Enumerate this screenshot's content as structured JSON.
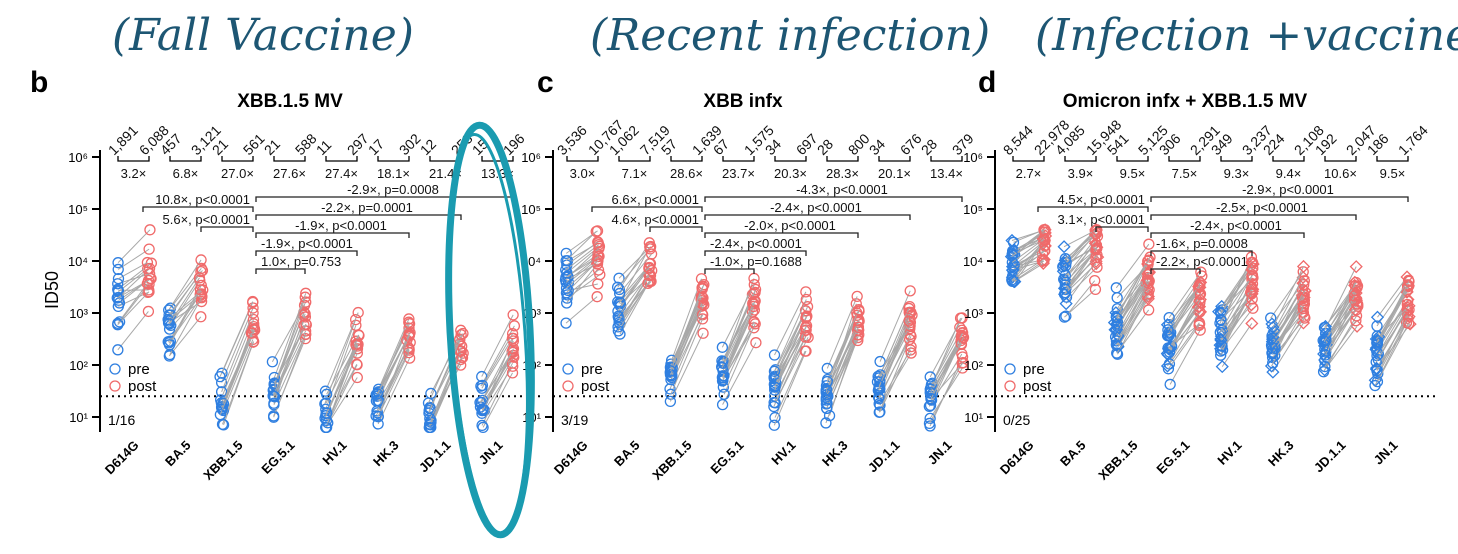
{
  "annotations": {
    "handwritten": [
      "(Fall Vaccine)",
      "(Recent infection)",
      "(Infection +vaccine)"
    ],
    "highlight_circle_target": "JN.1",
    "highlight_color": "#1a9bb0",
    "handwriting_color": "#1d5673"
  },
  "colors": {
    "pre": "#2f7fe0",
    "post": "#f06a6a",
    "link": "#a8a8a8"
  },
  "chart_data": [
    {
      "type": "scatter",
      "panel": "b",
      "title": "XBB.1.5 MV",
      "ylabel": "ID50",
      "yscale": "log",
      "ylim": [
        5,
        1000000
      ],
      "yticks": [
        "10¹",
        "10²",
        "10³",
        "10⁴",
        "10⁵",
        "10⁶"
      ],
      "limit_of_detection": 25,
      "categories": [
        "D614G",
        "BA.5",
        "XBB.1.5",
        "EG.5.1",
        "HV.1",
        "HK.3",
        "JD.1.1",
        "JN.1"
      ],
      "legend": [
        "pre",
        "post"
      ],
      "pre_gmt": [
        "1,891",
        "457",
        "21",
        "21",
        "11",
        "17",
        "12",
        "15"
      ],
      "post_gmt": [
        "6,088",
        "3,121",
        "561",
        "588",
        "297",
        "302",
        "258",
        "196"
      ],
      "fold": [
        "3.2×",
        "6.8×",
        "27.0×",
        "27.6×",
        "27.4×",
        "18.1×",
        "21.4×",
        "13.3×"
      ],
      "comparisons_left": [
        "10.8×, p<0.0001",
        "5.6×, p<0.0001"
      ],
      "comparisons_right": [
        "-2.9×, p=0.0008",
        "-2.2×, p=0.0001",
        "-1.9×, p<0.0001",
        "-1.9×, p<0.0001",
        "1.0×, p=0.753"
      ],
      "below_lod": "1/16"
    },
    {
      "type": "scatter",
      "panel": "c",
      "title": "XBB infx",
      "yscale": "log",
      "ylim": [
        5,
        1000000
      ],
      "limit_of_detection": 25,
      "categories": [
        "D614G",
        "BA.5",
        "XBB.1.5",
        "EG.5.1",
        "HV.1",
        "HK.3",
        "JD.1.1",
        "JN.1"
      ],
      "legend": [
        "pre",
        "post"
      ],
      "pre_gmt": [
        "3,536",
        "1,062",
        "57",
        "67",
        "34",
        "28",
        "34",
        "28"
      ],
      "post_gmt": [
        "10,767",
        "7,519",
        "1,639",
        "1,575",
        "697",
        "800",
        "676",
        "379"
      ],
      "fold": [
        "3.0×",
        "7.1×",
        "28.6×",
        "23.7×",
        "20.3×",
        "28.3×",
        "20.1×",
        "13.4×"
      ],
      "comparisons_left": [
        "6.6×, p<0.0001",
        "4.6×, p<0.0001"
      ],
      "comparisons_right": [
        "-4.3×, p<0.0001",
        "-2.4×, p<0.0001",
        "-2.0×, p<0.0001",
        "-2.4×, p<0.0001",
        "-1.0×, p=0.1688"
      ],
      "below_lod": "3/19"
    },
    {
      "type": "scatter",
      "panel": "d",
      "title": "Omicron infx + XBB.1.5 MV",
      "yscale": "log",
      "ylim": [
        5,
        1000000
      ],
      "limit_of_detection": 25,
      "categories": [
        "D614G",
        "BA.5",
        "XBB.1.5",
        "EG.5.1",
        "HV.1",
        "HK.3",
        "JD.1.1",
        "JN.1"
      ],
      "legend": [
        "pre",
        "post"
      ],
      "pre_gmt": [
        "8,544",
        "4,085",
        "541",
        "306",
        "349",
        "224",
        "192",
        "186"
      ],
      "post_gmt": [
        "22,978",
        "15,948",
        "5,125",
        "2,291",
        "3,237",
        "2,108",
        "2,047",
        "1,764"
      ],
      "fold": [
        "2.7×",
        "3.9×",
        "9.5×",
        "7.5×",
        "9.3×",
        "9.4×",
        "10.6×",
        "9.5×"
      ],
      "comparisons_left": [
        "4.5×, p<0.0001",
        "3.1×, p<0.0001"
      ],
      "comparisons_right": [
        "-2.9×, p<0.0001",
        "-2.5×, p<0.0001",
        "-2.4×, p<0.0001",
        "-1.6×, p=0.0008",
        "-2.2×, p<0.0001"
      ],
      "below_lod": "0/25"
    }
  ]
}
